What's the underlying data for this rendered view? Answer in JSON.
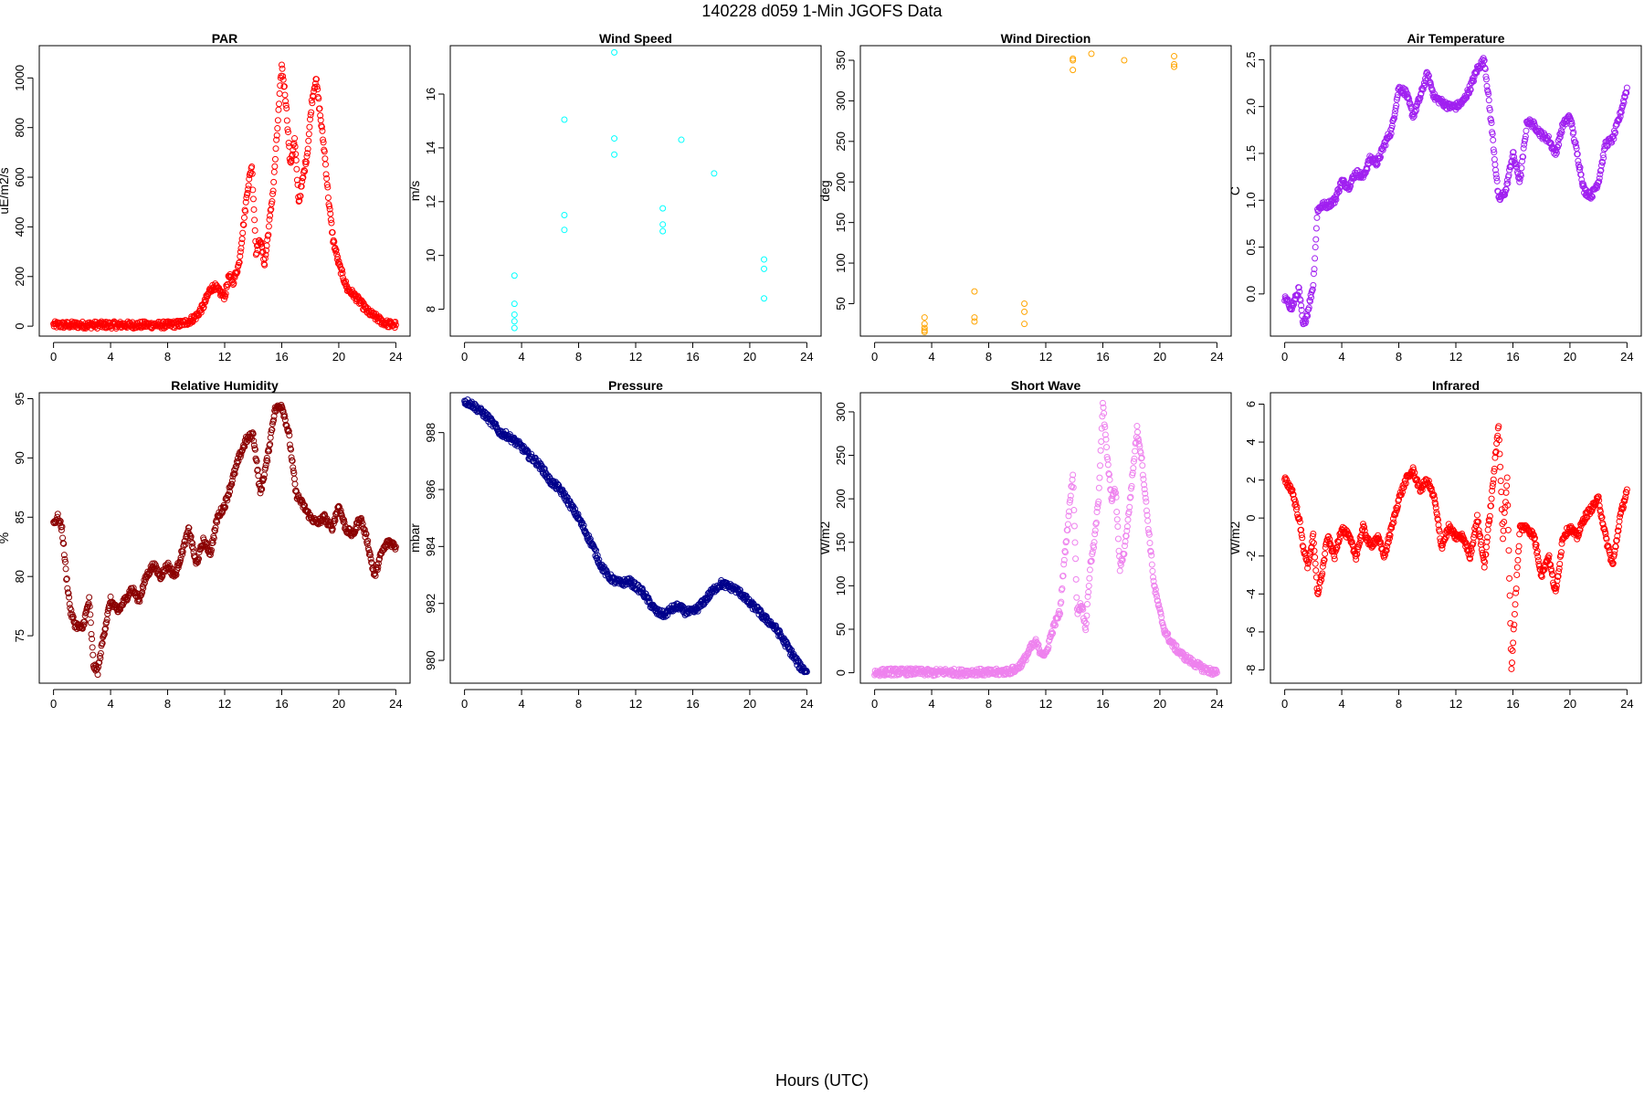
{
  "figure": {
    "title": "140228   d059   1-Min  JGOFS Data",
    "xlabel": "Hours (UTC)"
  },
  "chart_data": [
    {
      "type": "scatter",
      "title": "PAR",
      "xlabel": "",
      "ylabel": "uE/m2/s",
      "color": "#ff0000",
      "xlim": [
        -1,
        25
      ],
      "ylim": [
        -40,
        1130
      ],
      "xticks": [
        0,
        4,
        8,
        12,
        16,
        20,
        24
      ],
      "yticks": [
        0,
        200,
        400,
        600,
        800,
        1000
      ],
      "grid": false,
      "x": [
        0,
        1,
        2,
        3,
        4,
        5,
        6,
        7,
        8,
        9,
        9.5,
        10,
        10.5,
        11,
        11.3,
        11.6,
        12,
        12.3,
        12.6,
        13,
        13.3,
        13.6,
        13.9,
        14.2,
        14.5,
        14.8,
        15.1,
        15.4,
        15.7,
        16,
        16.3,
        16.6,
        16.9,
        17.2,
        17.5,
        17.8,
        18.1,
        18.4,
        18.7,
        19,
        19.3,
        19.6,
        20,
        20.3,
        20.6,
        21,
        21.3,
        21.6,
        22,
        22.5,
        23,
        23.5,
        24
      ],
      "y": [
        5,
        5,
        5,
        5,
        5,
        5,
        5,
        5,
        5,
        10,
        20,
        40,
        80,
        150,
        160,
        140,
        120,
        200,
        180,
        250,
        400,
        550,
        650,
        300,
        350,
        250,
        400,
        550,
        800,
        1050,
        900,
        650,
        750,
        500,
        600,
        700,
        900,
        1000,
        850,
        700,
        500,
        350,
        250,
        200,
        150,
        130,
        110,
        90,
        60,
        40,
        20,
        8,
        5
      ]
    },
    {
      "type": "scatter",
      "title": "Wind Speed",
      "xlabel": "",
      "ylabel": "m/s",
      "color": "#00ffff",
      "xlim": [
        -1,
        25
      ],
      "ylim": [
        7,
        17.8
      ],
      "xticks": [
        0,
        4,
        8,
        12,
        16,
        20,
        24
      ],
      "yticks": [
        8,
        10,
        12,
        14,
        16
      ],
      "grid": false,
      "x": [
        3.5,
        3.5,
        3.5,
        3.5,
        3.5,
        7,
        7,
        7,
        10.5,
        10.5,
        10.5,
        13.9,
        13.9,
        13.9,
        15.2,
        17.5,
        21,
        21,
        21
      ],
      "y": [
        9.25,
        8.2,
        7.8,
        7.55,
        7.3,
        15.05,
        11.5,
        10.95,
        17.55,
        14.35,
        13.75,
        11.75,
        11.15,
        10.9,
        14.3,
        13.05,
        9.85,
        9.5,
        8.4
      ]
    },
    {
      "type": "scatter",
      "title": "Wind Direction",
      "xlabel": "",
      "ylabel": "deg",
      "color": "#ffa500",
      "xlim": [
        -1,
        25
      ],
      "ylim": [
        10,
        368
      ],
      "xticks": [
        0,
        4,
        8,
        12,
        16,
        20,
        24
      ],
      "yticks": [
        50,
        100,
        150,
        200,
        250,
        300,
        350
      ],
      "grid": false,
      "x": [
        3.5,
        3.5,
        3.5,
        3.5,
        3.5,
        7,
        7,
        7,
        10.5,
        10.5,
        10.5,
        13.9,
        13.9,
        13.9,
        15.2,
        17.5,
        21,
        21,
        21
      ],
      "y": [
        33,
        25,
        20,
        17,
        15,
        65,
        33,
        28,
        50,
        40,
        25,
        352,
        350,
        338,
        358,
        350,
        355,
        345,
        342
      ]
    },
    {
      "type": "scatter",
      "title": "Air Temperature",
      "xlabel": "",
      "ylabel": "C",
      "color": "#a020f0",
      "xlim": [
        -1,
        25
      ],
      "ylim": [
        -0.45,
        2.65
      ],
      "xticks": [
        0,
        4,
        8,
        12,
        16,
        20,
        24
      ],
      "yticks": [
        0.0,
        0.5,
        1.0,
        1.5,
        2.0,
        2.5
      ],
      "grid": false,
      "x": [
        0,
        0.5,
        1,
        1.3,
        1.6,
        2,
        2.3,
        2.7,
        3,
        3.5,
        4,
        4.5,
        5,
        5.5,
        6,
        6.5,
        7,
        7.5,
        8,
        8.5,
        9,
        9.5,
        10,
        10.5,
        11,
        11.5,
        12,
        12.5,
        13,
        13.5,
        14,
        14.5,
        15,
        15.5,
        16,
        16.5,
        17,
        17.5,
        18,
        18.5,
        19,
        19.5,
        20,
        20.5,
        21,
        21.5,
        22,
        22.5,
        23,
        23.5,
        24
      ],
      "y": [
        -0.05,
        -0.15,
        0.05,
        -0.35,
        -0.2,
        0.1,
        0.9,
        0.95,
        0.95,
        1.0,
        1.2,
        1.15,
        1.3,
        1.25,
        1.45,
        1.4,
        1.6,
        1.75,
        2.2,
        2.15,
        1.9,
        2.1,
        2.35,
        2.1,
        2.05,
        2.0,
        2.0,
        2.05,
        2.2,
        2.4,
        2.5,
        1.8,
        1.0,
        1.1,
        1.5,
        1.2,
        1.85,
        1.8,
        1.7,
        1.65,
        1.5,
        1.8,
        1.9,
        1.5,
        1.1,
        1.05,
        1.2,
        1.6,
        1.65,
        1.9,
        2.2
      ]
    },
    {
      "type": "scatter",
      "title": "Relative Humidity",
      "xlabel": "",
      "ylabel": "%",
      "color": "#8b0000",
      "xlim": [
        -1,
        25
      ],
      "ylim": [
        71,
        95.5
      ],
      "xticks": [
        0,
        4,
        8,
        12,
        16,
        20,
        24
      ],
      "yticks": [
        75,
        80,
        85,
        90,
        95
      ],
      "grid": false,
      "x": [
        0,
        0.3,
        0.6,
        0.9,
        1.2,
        1.5,
        2,
        2.5,
        2.8,
        3.1,
        3.5,
        4,
        4.5,
        5,
        5.5,
        6,
        6.5,
        7,
        7.5,
        8,
        8.5,
        9,
        9.5,
        10,
        10.5,
        11,
        11.5,
        12,
        12.5,
        13,
        13.5,
        14,
        14.5,
        15,
        15.5,
        16,
        16.5,
        17,
        17.5,
        18,
        18.5,
        19,
        19.5,
        20,
        20.5,
        21,
        21.5,
        22,
        22.5,
        23,
        23.5,
        24
      ],
      "y": [
        84.5,
        85,
        84,
        80,
        77,
        76,
        75.5,
        78,
        72.5,
        72,
        75,
        78,
        77,
        78,
        79,
        78,
        80,
        81,
        80,
        81,
        80,
        82,
        84,
        81,
        83,
        82,
        85,
        86,
        88,
        90,
        91.5,
        92,
        87,
        90,
        94,
        94.5,
        92,
        87,
        86,
        85,
        84.5,
        85,
        84,
        86,
        84,
        83.5,
        85,
        83,
        80,
        82,
        83,
        82.5
      ]
    },
    {
      "type": "scatter",
      "title": "Pressure",
      "xlabel": "",
      "ylabel": "mbar",
      "color": "#00008b",
      "xlim": [
        -1,
        25
      ],
      "ylim": [
        979.2,
        989.4
      ],
      "xticks": [
        0,
        4,
        8,
        12,
        16,
        20,
        24
      ],
      "yticks": [
        980,
        982,
        984,
        986,
        988
      ],
      "grid": false,
      "x": [
        0,
        0.5,
        1,
        1.5,
        2,
        2.5,
        3,
        3.5,
        4,
        4.5,
        5,
        5.5,
        6,
        6.5,
        7,
        7.5,
        8,
        8.5,
        9,
        9.5,
        10,
        10.5,
        11,
        11.5,
        12,
        12.5,
        13,
        13.5,
        14,
        14.5,
        15,
        15.5,
        16,
        16.5,
        17,
        17.5,
        18,
        18.5,
        19,
        19.5,
        20,
        20.5,
        21,
        21.5,
        22,
        22.5,
        23,
        23.5,
        24
      ],
      "y": [
        989.1,
        989,
        988.8,
        988.6,
        988.3,
        988,
        987.9,
        987.7,
        987.5,
        987.2,
        987,
        986.7,
        986.3,
        986.1,
        985.8,
        985.4,
        985,
        984.5,
        984,
        983.4,
        983,
        982.8,
        982.7,
        982.8,
        982.6,
        982.4,
        982,
        981.7,
        981.6,
        981.8,
        981.9,
        981.7,
        981.7,
        981.9,
        982.2,
        982.5,
        982.7,
        982.6,
        982.5,
        982.3,
        982,
        981.8,
        981.5,
        981.3,
        981,
        980.6,
        980.2,
        979.8,
        979.6
      ]
    },
    {
      "type": "scatter",
      "title": "Short Wave",
      "xlabel": "",
      "ylabel": "W/m2",
      "color": "#ee82ee",
      "xlim": [
        -1,
        25
      ],
      "ylim": [
        -12,
        322
      ],
      "xticks": [
        0,
        4,
        8,
        12,
        16,
        20,
        24
      ],
      "yticks": [
        0,
        50,
        100,
        150,
        200,
        250,
        300
      ],
      "grid": false,
      "x": [
        0,
        1,
        2,
        3,
        4,
        5,
        6,
        7,
        8,
        9,
        9.5,
        10,
        10.5,
        11,
        11.3,
        11.6,
        12,
        12.3,
        12.6,
        13,
        13.3,
        13.6,
        13.9,
        14.2,
        14.5,
        14.8,
        15.1,
        15.4,
        15.7,
        16,
        16.3,
        16.6,
        16.9,
        17.2,
        17.5,
        17.8,
        18.1,
        18.4,
        18.7,
        19,
        19.3,
        19.6,
        20,
        20.3,
        20.6,
        21,
        21.3,
        21.6,
        22,
        22.5,
        23,
        23.5,
        24
      ],
      "y": [
        0,
        1,
        1,
        1,
        0,
        1,
        0,
        1,
        0,
        1,
        2,
        5,
        15,
        30,
        35,
        25,
        20,
        40,
        55,
        70,
        130,
        180,
        230,
        70,
        80,
        50,
        120,
        150,
        200,
        310,
        250,
        200,
        210,
        120,
        140,
        180,
        230,
        280,
        250,
        200,
        150,
        100,
        70,
        50,
        40,
        30,
        25,
        20,
        15,
        10,
        5,
        2,
        0
      ]
    },
    {
      "type": "scatter",
      "title": "Infrared",
      "xlabel": "",
      "ylabel": "W/m2",
      "color": "#ff0000",
      "xlim": [
        -1,
        25
      ],
      "ylim": [
        -8.7,
        6.6
      ],
      "xticks": [
        0,
        4,
        8,
        12,
        16,
        20,
        24
      ],
      "yticks": [
        -8,
        -6,
        -4,
        -2,
        0,
        2,
        4,
        6
      ],
      "grid": false,
      "x": [
        0,
        0.5,
        1,
        1.3,
        1.6,
        2,
        2.3,
        2.6,
        3,
        3.5,
        4,
        4.5,
        5,
        5.5,
        6,
        6.5,
        7,
        7.5,
        8,
        8.5,
        9,
        9.5,
        10,
        10.5,
        11,
        11.5,
        12,
        12.5,
        13,
        13.5,
        14,
        14.5,
        15,
        15.3,
        15.6,
        15.9,
        16.2,
        16.5,
        17,
        17.5,
        18,
        18.5,
        19,
        19.5,
        20,
        20.5,
        21,
        21.5,
        22,
        22.5,
        23,
        23.5,
        24
      ],
      "y": [
        2,
        1.5,
        0,
        -1.5,
        -2.5,
        -1,
        -4,
        -3,
        -1,
        -2,
        -0.5,
        -1,
        -2,
        -0.5,
        -1.5,
        -1,
        -2,
        -0.5,
        1,
        2,
        2.5,
        1.5,
        2,
        1,
        -1.5,
        -0.5,
        -1,
        -1,
        -2,
        0,
        -2.5,
        1,
        5,
        -1,
        2,
        -8,
        -4,
        -0.5,
        -0.5,
        -1,
        -3,
        -2,
        -4,
        -1,
        -0.5,
        -1,
        0,
        0.5,
        1,
        -1,
        -2.5,
        0,
        1.5
      ]
    }
  ]
}
